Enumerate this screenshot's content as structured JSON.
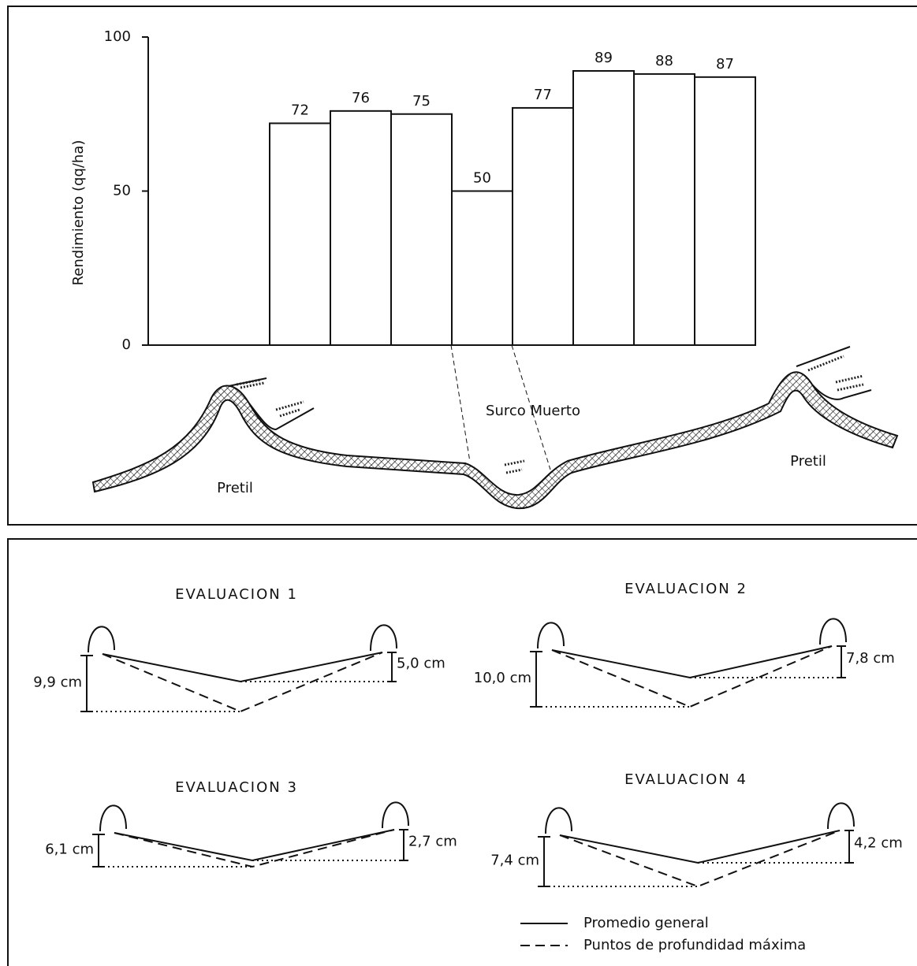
{
  "chart_data": {
    "type": "bar",
    "y_label": "Rendimiento (qq/ha)",
    "categories": [
      null,
      null,
      null,
      null,
      null,
      null,
      null,
      null,
      null,
      null
    ],
    "values": [
      null,
      null,
      72,
      76,
      75,
      50,
      77,
      89,
      88,
      87
    ],
    "color": "#ffffff",
    "ylim": [
      0,
      100
    ],
    "yticks": [
      0,
      50,
      100
    ],
    "grid": false
  },
  "profile": {
    "furrow_label": "Surco Muerto",
    "ridge_labels": [
      "Pretil",
      "Pretil"
    ]
  },
  "evaluations": [
    {
      "title": "EVALUACION 1",
      "left_label": "9,9 cm",
      "right_label": "5,0 cm"
    },
    {
      "title": "EVALUACION 2",
      "left_label": "10,0 cm",
      "right_label": "7,8 cm"
    },
    {
      "title": "EVALUACION 3",
      "left_label": "6,1 cm",
      "right_label": "2,7 cm"
    },
    {
      "title": "EVALUACION 4",
      "left_label": "7,4 cm",
      "right_label": "4,2 cm"
    }
  ],
  "legend": [
    "Promedio general",
    "Puntos de profundidad máxima"
  ]
}
